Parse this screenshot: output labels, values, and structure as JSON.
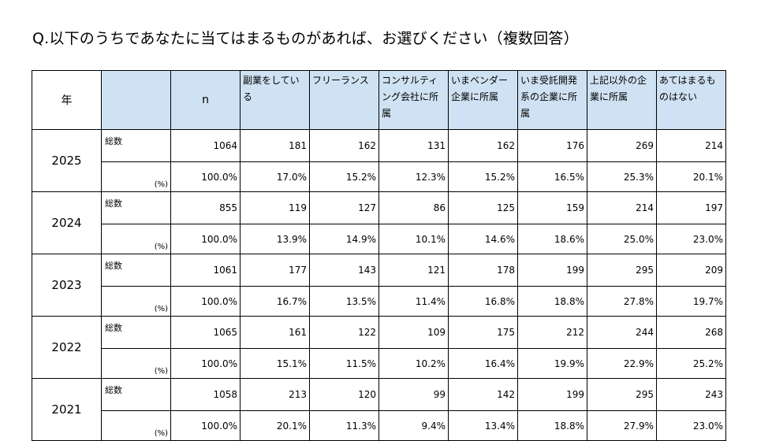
{
  "title": "Q.以下のうちであなたに当てはまるものがあれば、お選びください（複数回答）",
  "table": {
    "header": {
      "year": "年",
      "n": "n",
      "columns": [
        "副業をしている",
        "フリーランス",
        "コンサルティング会社に所属",
        "いまベンダー企業に所属",
        "いま受託開発系の企業に所属",
        "上記以外の企業に所属",
        "あてはまるものはない"
      ]
    },
    "row_label_total": "総数",
    "row_label_pct": "(%)",
    "years": [
      {
        "year": "2025",
        "total": [
          "1064",
          "181",
          "162",
          "131",
          "162",
          "176",
          "269",
          "214"
        ],
        "pct": [
          "100.0%",
          "17.0%",
          "15.2%",
          "12.3%",
          "15.2%",
          "16.5%",
          "25.3%",
          "20.1%"
        ]
      },
      {
        "year": "2024",
        "total": [
          "855",
          "119",
          "127",
          "86",
          "125",
          "159",
          "214",
          "197"
        ],
        "pct": [
          "100.0%",
          "13.9%",
          "14.9%",
          "10.1%",
          "14.6%",
          "18.6%",
          "25.0%",
          "23.0%"
        ]
      },
      {
        "year": "2023",
        "total": [
          "1061",
          "177",
          "143",
          "121",
          "178",
          "199",
          "295",
          "209"
        ],
        "pct": [
          "100.0%",
          "16.7%",
          "13.5%",
          "11.4%",
          "16.8%",
          "18.8%",
          "27.8%",
          "19.7%"
        ]
      },
      {
        "year": "2022",
        "total": [
          "1065",
          "161",
          "122",
          "109",
          "175",
          "212",
          "244",
          "268"
        ],
        "pct": [
          "100.0%",
          "15.1%",
          "11.5%",
          "10.2%",
          "16.4%",
          "19.9%",
          "22.9%",
          "25.2%"
        ]
      },
      {
        "year": "2021",
        "total": [
          "1058",
          "213",
          "120",
          "99",
          "142",
          "199",
          "295",
          "243"
        ],
        "pct": [
          "100.0%",
          "20.1%",
          "11.3%",
          "9.4%",
          "13.4%",
          "18.8%",
          "27.9%",
          "23.0%"
        ]
      }
    ]
  }
}
